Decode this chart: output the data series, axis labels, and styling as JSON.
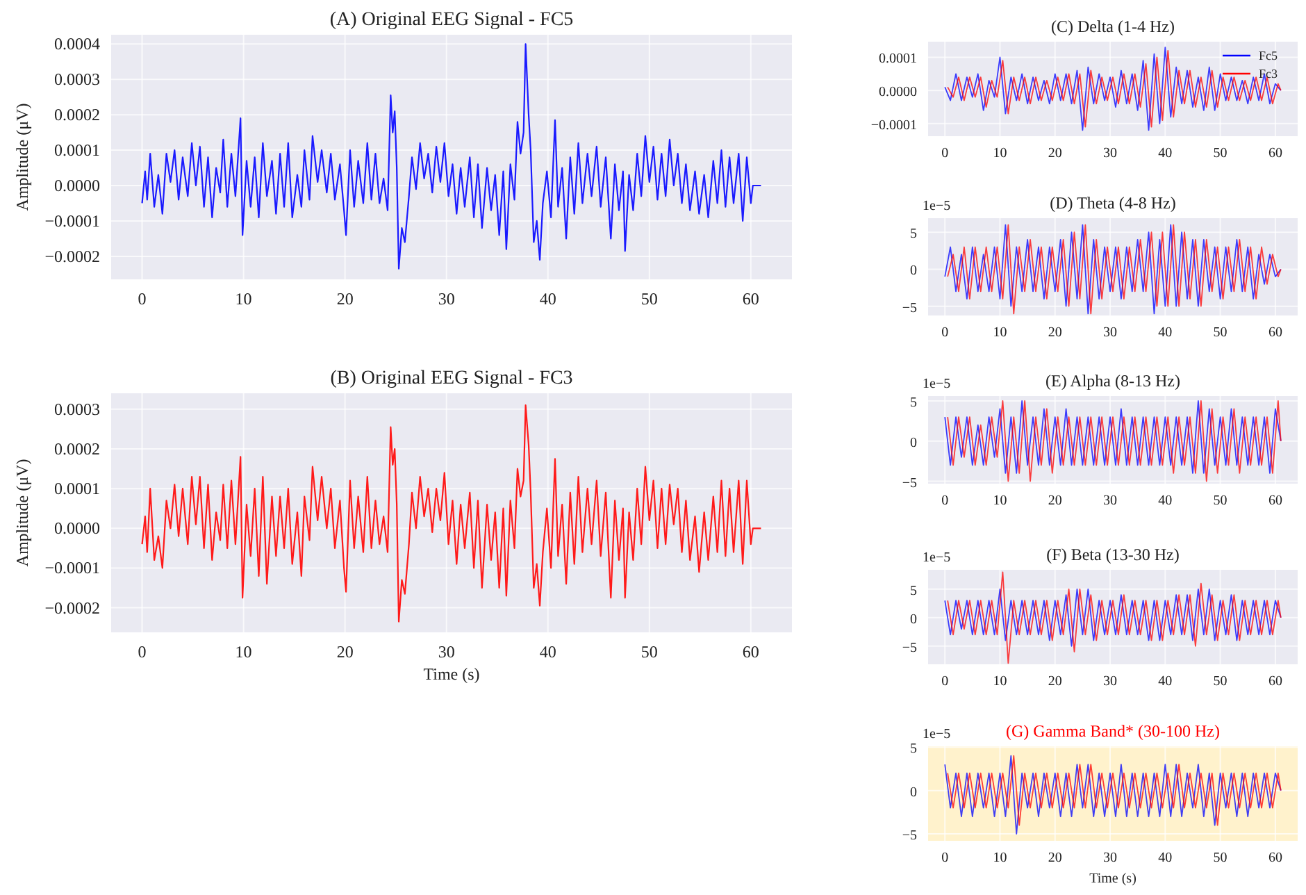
{
  "chart_data": [
    {
      "type": "line",
      "title": "(A) Original EEG Signal - FC5",
      "ylabel": "Amplitude (μV)",
      "grid": true,
      "x": [
        0,
        0.3,
        0.5,
        0.8,
        1.2,
        1.6,
        2,
        2.4,
        2.8,
        3.2,
        3.6,
        4,
        4.5,
        4.9,
        5.3,
        5.7,
        6.1,
        6.5,
        6.9,
        7.3,
        7.7,
        8,
        8.4,
        8.8,
        9.2,
        9.7,
        9.9,
        10.3,
        10.7,
        11.1,
        11.5,
        11.9,
        12.3,
        12.8,
        13.2,
        13.6,
        14,
        14.4,
        14.8,
        15.3,
        15.7,
        16,
        16.5,
        16.8,
        17.3,
        17.7,
        18.2,
        18.6,
        19,
        19.5,
        19.9,
        20.1,
        20.5,
        20.9,
        21.3,
        21.8,
        22.2,
        22.6,
        23,
        23.4,
        23.8,
        24.2,
        24.5,
        24.7,
        24.9,
        25.1,
        25.3,
        25.6,
        25.9,
        26.3,
        26.6,
        27,
        27.4,
        27.8,
        28.2,
        28.6,
        29,
        29.4,
        29.8,
        30.2,
        30.6,
        31,
        31.4,
        31.8,
        32.3,
        32.7,
        33.1,
        33.5,
        34,
        34.4,
        34.8,
        35.2,
        35.6,
        35.9,
        36.3,
        36.7,
        37,
        37.3,
        37.6,
        37.8,
        38.1,
        38.3,
        38.6,
        38.9,
        39.2,
        39.5,
        39.9,
        40.3,
        40.7,
        41,
        41.4,
        41.8,
        42.2,
        42.6,
        43,
        43.4,
        43.9,
        44.3,
        44.8,
        45.2,
        45.7,
        46.2,
        46.6,
        47,
        47.4,
        47.6,
        48,
        48.4,
        48.8,
        49.2,
        49.6,
        50,
        50.4,
        50.8,
        51.2,
        51.6,
        52,
        52.4,
        52.8,
        53.2,
        53.6,
        54,
        54.5,
        54.9,
        55.4,
        55.8,
        56.3,
        56.7,
        57.1,
        57.5,
        57.9,
        58.3,
        58.8,
        59.2,
        59.6,
        60,
        60.2,
        61
      ],
      "series": [
        {
          "color": "#1a1aff",
          "values": [
            -5e-05,
            4e-05,
            -4e-05,
            9e-05,
            -6e-05,
            3e-05,
            -8e-05,
            9e-05,
            1e-05,
            0.0001,
            -4e-05,
            8e-05,
            -3e-05,
            0.00012,
            0,
            0.00011,
            -6e-05,
            8e-05,
            -9e-05,
            5e-05,
            -2e-05,
            0.00013,
            -6e-05,
            9e-05,
            -3e-05,
            0.00019,
            -0.00014,
            7e-05,
            -6e-05,
            8e-05,
            -9e-05,
            0.00012,
            -3e-05,
            7e-05,
            -8e-05,
            9e-05,
            -6e-05,
            0.00012,
            -9e-05,
            3e-05,
            -6e-05,
            0.0001,
            -4e-05,
            0.00014,
            1e-05,
            0.0001,
            -2e-05,
            9e-05,
            -4e-05,
            6e-05,
            -7e-05,
            -0.00014,
            0.0001,
            -6e-05,
            7e-05,
            -5e-05,
            0.00012,
            -4e-05,
            9e-05,
            -5e-05,
            2e-05,
            -7e-05,
            0.000255,
            0.00015,
            0.00021,
            5e-05,
            -0.000235,
            -0.00012,
            -0.00016,
            -3e-05,
            8e-05,
            -1e-05,
            0.00012,
            2e-05,
            9e-05,
            -2e-05,
            0.00011,
            1e-05,
            0.00012,
            -3e-05,
            6e-05,
            -8e-05,
            5e-05,
            -6e-05,
            8e-05,
            -9e-05,
            6e-05,
            -0.00012,
            5e-05,
            -7e-05,
            3e-05,
            -0.00014,
            4e-05,
            -0.00018,
            6e-05,
            -4e-05,
            0.00018,
            9e-05,
            0.00015,
            0.0004,
            0.0002,
            0.0001,
            -0.00016,
            -0.0001,
            -0.00021,
            -5e-05,
            4e-05,
            -9e-05,
            0.000185,
            -6e-05,
            5e-05,
            -0.00015,
            8e-05,
            -8e-05,
            0.00012,
            -5e-05,
            9e-05,
            -3e-05,
            0.00011,
            -6e-05,
            8e-05,
            -0.00015,
            6e-05,
            -7e-05,
            4e-05,
            -0.000185,
            3e-05,
            -7e-05,
            9e-05,
            -3e-05,
            0.00014,
            1e-05,
            0.00011,
            -4e-05,
            9e-05,
            -3e-05,
            0.00013,
            0,
            9e-05,
            -5e-05,
            6e-05,
            -7e-05,
            4e-05,
            -8e-05,
            3e-05,
            -9e-05,
            7e-05,
            -5e-05,
            0.0001,
            -6e-05,
            8e-05,
            -5e-05,
            9e-05,
            -0.0001,
            8e-05,
            -5e-05,
            0,
            0
          ]
        }
      ],
      "xlim": [
        -3.05,
        64.05
      ],
      "xticks": [
        0,
        10,
        20,
        30,
        40,
        50,
        60
      ],
      "ylim": [
        -0.000265,
        0.000426
      ],
      "yticks": [
        {
          "value": -0.0002,
          "label": "−0.0002"
        },
        {
          "value": -0.0001,
          "label": "−0.0001"
        },
        {
          "value": 0,
          "label": "0.0000"
        },
        0.0001,
        0.0002,
        0.0003,
        0.0004
      ]
    },
    {
      "type": "line",
      "title": "(B) Original EEG Signal - FC3",
      "xlabel": "Time (s)",
      "ylabel": "Amplitude (μV)",
      "grid": true,
      "x": [
        0,
        0.3,
        0.5,
        0.8,
        1.2,
        1.6,
        2,
        2.4,
        2.8,
        3.2,
        3.6,
        4,
        4.5,
        4.9,
        5.3,
        5.7,
        6.1,
        6.5,
        6.9,
        7.3,
        7.7,
        8,
        8.4,
        8.8,
        9.2,
        9.7,
        9.9,
        10.3,
        10.7,
        11.1,
        11.5,
        11.9,
        12.3,
        12.8,
        13.2,
        13.6,
        14,
        14.4,
        14.8,
        15.3,
        15.7,
        16,
        16.5,
        16.8,
        17.3,
        17.7,
        18.2,
        18.6,
        19,
        19.5,
        19.9,
        20.1,
        20.5,
        20.9,
        21.3,
        21.8,
        22.2,
        22.6,
        23,
        23.4,
        23.8,
        24.2,
        24.5,
        24.7,
        24.9,
        25.1,
        25.3,
        25.6,
        25.9,
        26.3,
        26.6,
        27,
        27.4,
        27.8,
        28.2,
        28.6,
        29,
        29.4,
        29.8,
        30.2,
        30.6,
        31,
        31.4,
        31.8,
        32.3,
        32.7,
        33.1,
        33.5,
        34,
        34.4,
        34.8,
        35.2,
        35.6,
        35.9,
        36.3,
        36.7,
        37,
        37.3,
        37.6,
        37.8,
        38.1,
        38.3,
        38.6,
        38.9,
        39.2,
        39.5,
        39.9,
        40.3,
        40.7,
        41,
        41.4,
        41.8,
        42.2,
        42.6,
        43,
        43.4,
        43.9,
        44.3,
        44.8,
        45.2,
        45.7,
        46.2,
        46.6,
        47,
        47.4,
        47.6,
        48,
        48.4,
        48.8,
        49.2,
        49.6,
        50,
        50.4,
        50.8,
        51.2,
        51.6,
        52,
        52.4,
        52.8,
        53.2,
        53.6,
        54,
        54.5,
        54.9,
        55.4,
        55.8,
        56.3,
        56.7,
        57.1,
        57.5,
        57.9,
        58.3,
        58.8,
        59.2,
        59.6,
        60,
        60.2,
        61
      ],
      "series": [
        {
          "color": "#ff1a1a",
          "values": [
            -4e-05,
            3e-05,
            -6e-05,
            0.0001,
            -8e-05,
            -2e-05,
            -0.0001,
            7e-05,
            0,
            0.00011,
            -2e-05,
            0.0001,
            -4e-05,
            0.00013,
            1e-05,
            0.00013,
            -5e-05,
            0.00011,
            -8e-05,
            4e-05,
            -3e-05,
            0.00011,
            -5e-05,
            0.00012,
            -4e-05,
            0.00018,
            -0.000175,
            6e-05,
            -7e-05,
            0.0001,
            -0.00012,
            0.00013,
            -0.00014,
            8e-05,
            -7e-05,
            8e-05,
            -5e-05,
            0.0001,
            -9e-05,
            4e-05,
            -0.00012,
            8e-05,
            -3e-05,
            0.000155,
            2e-05,
            0.00013,
            0,
            0.0001,
            -5e-05,
            7e-05,
            -0.0001,
            -0.00016,
            0.00012,
            -5e-05,
            8e-05,
            -6e-05,
            0.00013,
            -5e-05,
            7e-05,
            -4e-05,
            3e-05,
            -6e-05,
            0.000255,
            0.00016,
            0.0002,
            6e-05,
            -0.000235,
            -0.00013,
            -0.000165,
            -4e-05,
            9e-05,
            0,
            0.00013,
            3e-05,
            0.0001,
            -1e-05,
            0.0001,
            2e-05,
            0.00014,
            -4e-05,
            7e-05,
            -9e-05,
            6e-05,
            -5e-05,
            9e-05,
            -0.0001,
            7e-05,
            -0.00015,
            6e-05,
            -8e-05,
            4e-05,
            -0.00015,
            5e-05,
            -0.00017,
            7e-05,
            -5e-05,
            0.00015,
            8e-05,
            0.00012,
            0.00031,
            0.00021,
            9e-05,
            -0.00015,
            -9e-05,
            -0.000195,
            -6e-05,
            5e-05,
            -0.0001,
            0.000175,
            -7e-05,
            6e-05,
            -0.00014,
            9e-05,
            -9e-05,
            0.00013,
            -6e-05,
            0.0001,
            -4e-05,
            0.00012,
            -7e-05,
            9e-05,
            -0.000175,
            7e-05,
            -8e-05,
            5e-05,
            -0.000175,
            4e-05,
            -8e-05,
            0.0001,
            -4e-05,
            0.000155,
            2e-05,
            0.00012,
            -5e-05,
            0.0001,
            -4e-05,
            0.00011,
            1e-05,
            0.0001,
            -6e-05,
            7e-05,
            -8e-05,
            3e-05,
            -0.00011,
            4e-05,
            -8e-05,
            8e-05,
            -6e-05,
            0.00012,
            -7e-05,
            0.0001,
            -6e-05,
            0.00012,
            -9e-05,
            0.00012,
            -4e-05,
            0,
            0
          ]
        }
      ],
      "xlim": [
        -3.05,
        64.05
      ],
      "xticks": [
        0,
        10,
        20,
        30,
        40,
        50,
        60
      ],
      "ylim": [
        -0.000262,
        0.00034
      ],
      "yticks": [
        {
          "value": -0.0002,
          "label": "−0.0002"
        },
        {
          "value": -0.0001,
          "label": "−0.0001"
        },
        {
          "value": 0,
          "label": "0.0000"
        },
        0.0001,
        0.0002,
        0.0003
      ]
    },
    {
      "type": "line",
      "title": "(C) Delta (1-4 Hz)",
      "grid": true,
      "legend": "top right",
      "x": [
        0,
        1,
        2,
        3,
        4,
        5,
        6,
        7,
        8,
        9,
        10,
        11,
        12,
        13,
        14,
        15,
        16,
        17,
        18,
        19,
        20,
        21,
        22,
        23,
        24,
        25,
        26,
        27,
        28,
        29,
        30,
        31,
        32,
        33,
        34,
        35,
        36,
        37,
        38,
        39,
        40,
        41,
        42,
        43,
        44,
        45,
        46,
        47,
        48,
        49,
        50,
        51,
        52,
        53,
        54,
        55,
        56,
        57,
        58,
        59,
        60,
        61
      ],
      "series": [
        {
          "name": "Fc5",
          "color": "#0000ff",
          "values": [
            1e-05,
            -3e-05,
            5e-05,
            -3e-05,
            4e-05,
            -2e-05,
            5e-05,
            -6e-05,
            3e-05,
            -2e-05,
            0.0001,
            -7e-05,
            4e-05,
            -3e-05,
            5e-05,
            -4e-05,
            4e-05,
            -3e-05,
            3e-05,
            -4e-05,
            5e-05,
            -3e-05,
            5e-05,
            -4e-05,
            6e-05,
            -0.00012,
            7e-05,
            -4e-05,
            5e-05,
            -3e-05,
            4e-05,
            -5e-05,
            6e-05,
            -4e-05,
            5e-05,
            -6e-05,
            9e-05,
            -0.00012,
            0.00011,
            -0.0001,
            0.00013,
            -8e-05,
            7e-05,
            -4e-05,
            6e-05,
            -5e-05,
            4e-05,
            -6e-05,
            7e-05,
            -6e-05,
            5e-05,
            -3e-05,
            4e-05,
            -3e-05,
            3e-05,
            -4e-05,
            4e-05,
            -3e-05,
            5e-05,
            -4e-05,
            2e-05,
            0
          ]
        },
        {
          "name": "Fc3",
          "color": "#ff0000",
          "x": [
            0.5,
            1.5,
            2.5,
            3.5,
            4.5,
            5.5,
            6.5,
            7.5,
            8.5,
            9.5,
            10.5,
            11.5,
            12.5,
            13.5,
            14.5,
            15.5,
            16.5,
            17.5,
            18.5,
            19.5,
            20.5,
            21.5,
            22.5,
            23.5,
            24.5,
            25.5,
            26.5,
            27.5,
            28.5,
            29.5,
            30.5,
            31.5,
            32.5,
            33.5,
            34.5,
            35.5,
            36.5,
            37.5,
            38.5,
            39.5,
            40.5,
            41.5,
            42.5,
            43.5,
            44.5,
            45.5,
            46.5,
            47.5,
            48.5,
            49.5,
            50.5,
            51.5,
            52.5,
            53.5,
            54.5,
            55.5,
            56.5,
            57.5,
            58.5,
            59.5,
            60.5,
            61
          ],
          "values": [
            1e-05,
            -2e-05,
            4e-05,
            -3e-05,
            4e-05,
            -2e-05,
            4e-05,
            -5e-05,
            3e-05,
            -2e-05,
            9e-05,
            -7e-05,
            4e-05,
            -3e-05,
            4e-05,
            -4e-05,
            4e-05,
            -3e-05,
            3e-05,
            -3e-05,
            4e-05,
            -3e-05,
            5e-05,
            -4e-05,
            5e-05,
            -0.00011,
            6e-05,
            -4e-05,
            4e-05,
            -3e-05,
            4e-05,
            -4e-05,
            5e-05,
            -4e-05,
            5e-05,
            -5e-05,
            8e-05,
            -0.00011,
            0.0001,
            -9e-05,
            0.00012,
            -8e-05,
            6e-05,
            -4e-05,
            6e-05,
            -5e-05,
            4e-05,
            -5e-05,
            6e-05,
            -5e-05,
            4e-05,
            -3e-05,
            4e-05,
            -3e-05,
            3e-05,
            -3e-05,
            4e-05,
            -3e-05,
            4e-05,
            -4e-05,
            2e-05,
            0
          ]
        }
      ],
      "xlim": [
        -3.05,
        64.05
      ],
      "xticks": [
        0,
        10,
        20,
        30,
        40,
        50,
        60
      ],
      "ylim": [
        -0.000138,
        0.000147
      ],
      "yticks": [
        {
          "value": -0.0001,
          "label": "−0.0001"
        },
        {
          "value": 0,
          "label": "0.0000"
        },
        0.0001
      ]
    },
    {
      "type": "line",
      "title": "(D) Theta (4-8 Hz)",
      "grid": true,
      "annotations": [
        "1e−5"
      ],
      "x": [
        0,
        1,
        2,
        3,
        4,
        5,
        6,
        7,
        8,
        9,
        10,
        11,
        12,
        13,
        14,
        15,
        16,
        17,
        18,
        19,
        20,
        21,
        22,
        23,
        24,
        25,
        26,
        27,
        28,
        29,
        30,
        31,
        32,
        33,
        34,
        35,
        36,
        37,
        38,
        39,
        40,
        41,
        42,
        43,
        44,
        45,
        46,
        47,
        48,
        49,
        50,
        51,
        52,
        53,
        54,
        55,
        56,
        57,
        58,
        59,
        60,
        61
      ],
      "series": [
        {
          "color": "#0000ff",
          "values": [
            -1,
            3,
            -3,
            2,
            -4,
            3,
            -3,
            2,
            -3,
            3,
            -4,
            6,
            -5,
            3,
            -3,
            4,
            -3,
            3,
            -4,
            3,
            -3,
            4,
            -5,
            5,
            -4,
            6,
            -6,
            4,
            -4,
            3,
            -3,
            3,
            -4,
            3,
            -3,
            4,
            -3,
            5,
            -6,
            4,
            -5,
            6,
            -5,
            5,
            -4,
            4,
            -5,
            4,
            -3,
            3,
            -4,
            3,
            -3,
            4,
            -3,
            3,
            -4,
            2,
            -2,
            2,
            -1,
            0
          ]
        },
        {
          "color": "#ff0000",
          "x": [
            0.5,
            1.5,
            2.5,
            3.5,
            4.5,
            5.5,
            6.5,
            7.5,
            8.5,
            9.5,
            10.5,
            11.5,
            12.5,
            13.5,
            14.5,
            15.5,
            16.5,
            17.5,
            18.5,
            19.5,
            20.5,
            21.5,
            22.5,
            23.5,
            24.5,
            25.5,
            26.5,
            27.5,
            28.5,
            29.5,
            30.5,
            31.5,
            32.5,
            33.5,
            34.5,
            35.5,
            36.5,
            37.5,
            38.5,
            39.5,
            40.5,
            41.5,
            42.5,
            43.5,
            44.5,
            45.5,
            46.5,
            47.5,
            48.5,
            49.5,
            50.5,
            51.5,
            52.5,
            53.5,
            54.5,
            55.5,
            56.5,
            57.5,
            58.5,
            59.5,
            60.5,
            61
          ],
          "values": [
            -1,
            2,
            -3,
            3,
            -4,
            3,
            -3,
            3,
            -3,
            3,
            -4,
            6,
            -6,
            3,
            -3,
            4,
            -3,
            3,
            -4,
            3,
            -3,
            4,
            -5,
            5,
            -4,
            6,
            -6,
            4,
            -4,
            3,
            -3,
            3,
            -4,
            3,
            -3,
            4,
            -3,
            5,
            -5,
            5,
            -5,
            6,
            -5,
            5,
            -4,
            4,
            -5,
            4,
            -3,
            3,
            -4,
            3,
            -3,
            4,
            -3,
            3,
            -4,
            3,
            -2,
            2,
            -1,
            0
          ]
        }
      ],
      "xlim": [
        -3.05,
        64.05
      ],
      "xticks": [
        0,
        10,
        20,
        30,
        40,
        50,
        60
      ],
      "ylim": [
        -6.25,
        6.9
      ],
      "yticks": [
        {
          "value": -5,
          "label": "−5"
        },
        0,
        5
      ]
    },
    {
      "type": "line",
      "title": "(E) Alpha (8-13 Hz)",
      "grid": true,
      "annotations": [
        "1e−5"
      ],
      "x": [
        0,
        1,
        2,
        3,
        4,
        5,
        6,
        7,
        8,
        9,
        10,
        11,
        12,
        13,
        14,
        15,
        16,
        17,
        18,
        19,
        20,
        21,
        22,
        23,
        24,
        25,
        26,
        27,
        28,
        29,
        30,
        31,
        32,
        33,
        34,
        35,
        36,
        37,
        38,
        39,
        40,
        41,
        42,
        43,
        44,
        45,
        46,
        47,
        48,
        49,
        50,
        51,
        52,
        53,
        54,
        55,
        56,
        57,
        58,
        59,
        60,
        61
      ],
      "series": [
        {
          "color": "#0000ff",
          "values": [
            3,
            -3,
            3,
            -2,
            3,
            -3,
            2,
            -3,
            3,
            -2,
            4,
            -4,
            3,
            -4,
            5,
            -3,
            3,
            -3,
            4,
            -3,
            3,
            -3,
            4,
            -3,
            3,
            -3,
            3,
            -3,
            3,
            -3,
            3,
            -3,
            4,
            -3,
            3,
            -3,
            3,
            -3,
            3,
            -3,
            3,
            -3,
            3,
            -3,
            3,
            -4,
            5,
            -4,
            4,
            -3,
            3,
            -3,
            4,
            -3,
            3,
            -3,
            3,
            -3,
            3,
            -4,
            4,
            0
          ]
        },
        {
          "color": "#ff0000",
          "x": [
            0.5,
            1.5,
            2.5,
            3.5,
            4.5,
            5.5,
            6.5,
            7.5,
            8.5,
            9.5,
            10.5,
            11.5,
            12.5,
            13.5,
            14.5,
            15.5,
            16.5,
            17.5,
            18.5,
            19.5,
            20.5,
            21.5,
            22.5,
            23.5,
            24.5,
            25.5,
            26.5,
            27.5,
            28.5,
            29.5,
            30.5,
            31.5,
            32.5,
            33.5,
            34.5,
            35.5,
            36.5,
            37.5,
            38.5,
            39.5,
            40.5,
            41.5,
            42.5,
            43.5,
            44.5,
            45.5,
            46.5,
            47.5,
            48.5,
            49.5,
            50.5,
            51.5,
            52.5,
            53.5,
            54.5,
            55.5,
            56.5,
            57.5,
            58.5,
            59.5,
            60.5,
            61
          ],
          "values": [
            3,
            -3,
            3,
            -2,
            3,
            -3,
            2,
            -3,
            3,
            -2,
            5,
            -5,
            3,
            -4,
            5,
            -5,
            3,
            -3,
            4,
            -4,
            3,
            -3,
            3,
            -3,
            3,
            -3,
            3,
            -3,
            3,
            -3,
            3,
            -3,
            3,
            -3,
            3,
            -3,
            3,
            -3,
            3,
            -3,
            3,
            -4,
            3,
            -3,
            3,
            -4,
            5,
            -5,
            4,
            -4,
            3,
            -3,
            4,
            -4,
            3,
            -3,
            3,
            -3,
            3,
            -4,
            5,
            0
          ]
        }
      ],
      "xlim": [
        -3.05,
        64.05
      ],
      "xticks": [
        0,
        10,
        20,
        30,
        40,
        50,
        60
      ],
      "ylim": [
        -5.3,
        5.6
      ],
      "yticks": [
        {
          "value": -5,
          "label": "−5"
        },
        0,
        5
      ]
    },
    {
      "type": "line",
      "title": "(F) Beta (13-30 Hz)",
      "grid": true,
      "annotations": [
        "1e−5"
      ],
      "x": [
        0,
        1,
        2,
        3,
        4,
        5,
        6,
        7,
        8,
        9,
        10,
        11,
        12,
        13,
        14,
        15,
        16,
        17,
        18,
        19,
        20,
        21,
        22,
        23,
        24,
        25,
        26,
        27,
        28,
        29,
        30,
        31,
        32,
        33,
        34,
        35,
        36,
        37,
        38,
        39,
        40,
        41,
        42,
        43,
        44,
        45,
        46,
        47,
        48,
        49,
        50,
        51,
        52,
        53,
        54,
        55,
        56,
        57,
        58,
        59,
        60,
        61
      ],
      "series": [
        {
          "color": "#0000ff",
          "values": [
            3,
            -3,
            3,
            -2,
            3,
            -3,
            3,
            -3,
            3,
            -3,
            5,
            -4,
            3,
            -3,
            3,
            -3,
            3,
            -3,
            3,
            -4,
            3,
            -3,
            4,
            -5,
            5,
            -3,
            5,
            -4,
            3,
            -3,
            3,
            -3,
            4,
            -3,
            3,
            -3,
            3,
            -4,
            3,
            -4,
            3,
            -3,
            4,
            -3,
            4,
            -4,
            5,
            -3,
            5,
            -4,
            3,
            -3,
            4,
            -4,
            3,
            -3,
            3,
            -3,
            3,
            -3,
            3,
            0
          ]
        },
        {
          "color": "#ff0000",
          "x": [
            0.5,
            1.5,
            2.5,
            3.5,
            4.5,
            5.5,
            6.5,
            7.5,
            8.5,
            9.5,
            10.5,
            11.5,
            12.5,
            13.5,
            14.5,
            15.5,
            16.5,
            17.5,
            18.5,
            19.5,
            20.5,
            21.5,
            22.5,
            23.5,
            24.5,
            25.5,
            26.5,
            27.5,
            28.5,
            29.5,
            30.5,
            31.5,
            32.5,
            33.5,
            34.5,
            35.5,
            36.5,
            37.5,
            38.5,
            39.5,
            40.5,
            41.5,
            42.5,
            43.5,
            44.5,
            45.5,
            46.5,
            47.5,
            48.5,
            49.5,
            50.5,
            51.5,
            52.5,
            53.5,
            54.5,
            55.5,
            56.5,
            57.5,
            58.5,
            59.5,
            60.5,
            61
          ],
          "values": [
            3,
            -3,
            3,
            -2,
            3,
            -3,
            3,
            -3,
            3,
            -3,
            8,
            -8,
            3,
            -3,
            3,
            -3,
            3,
            -3,
            3,
            -4,
            3,
            -3,
            5,
            -6,
            5,
            -3,
            4,
            -4,
            3,
            -3,
            3,
            -3,
            4,
            -3,
            3,
            -3,
            3,
            -4,
            3,
            -4,
            3,
            -3,
            4,
            -3,
            4,
            -5,
            6,
            -3,
            4,
            -4,
            3,
            -3,
            4,
            -4,
            3,
            -3,
            3,
            -3,
            3,
            -3,
            3,
            0
          ]
        }
      ],
      "xlim": [
        -3.05,
        64.05
      ],
      "xticks": [
        0,
        10,
        20,
        30,
        40,
        50,
        60
      ],
      "ylim": [
        -8.2,
        8.4
      ],
      "yticks": [
        {
          "value": -5,
          "label": "−5"
        },
        0,
        5
      ]
    },
    {
      "type": "line",
      "title": "(G) Gamma Band* (30-100 Hz)",
      "xlabel": "Time (s)",
      "grid": true,
      "annotations": [
        "1e−5"
      ],
      "bands": [
        {
          "axis": "x",
          "from": -3.05,
          "to": 64.05,
          "color": "#fff2cc"
        }
      ],
      "x": [
        0,
        1,
        2,
        3,
        4,
        5,
        6,
        7,
        8,
        9,
        10,
        11,
        12,
        13,
        14,
        15,
        16,
        17,
        18,
        19,
        20,
        21,
        22,
        23,
        24,
        25,
        26,
        27,
        28,
        29,
        30,
        31,
        32,
        33,
        34,
        35,
        36,
        37,
        38,
        39,
        40,
        41,
        42,
        43,
        44,
        45,
        46,
        47,
        48,
        49,
        50,
        51,
        52,
        53,
        54,
        55,
        56,
        57,
        58,
        59,
        60,
        61
      ],
      "series": [
        {
          "color": "#0000ff",
          "values": [
            3,
            -2,
            2,
            -3,
            2,
            -3,
            2,
            -2,
            2,
            -3,
            2,
            -3,
            4,
            -5,
            2,
            -2,
            2,
            -3,
            2,
            -2,
            2,
            -3,
            2,
            -3,
            3,
            -2,
            3,
            -3,
            2,
            -3,
            2,
            -3,
            3,
            -3,
            2,
            -3,
            2,
            -3,
            2,
            -3,
            3,
            -3,
            3,
            -3,
            2,
            -2,
            3,
            -3,
            2,
            -4,
            2,
            -2,
            2,
            -3,
            2,
            -3,
            2,
            -2,
            2,
            -2,
            2,
            0
          ]
        },
        {
          "color": "#ff0000",
          "x": [
            0.5,
            1.5,
            2.5,
            3.5,
            4.5,
            5.5,
            6.5,
            7.5,
            8.5,
            9.5,
            10.5,
            11.5,
            12.5,
            13.5,
            14.5,
            15.5,
            16.5,
            17.5,
            18.5,
            19.5,
            20.5,
            21.5,
            22.5,
            23.5,
            24.5,
            25.5,
            26.5,
            27.5,
            28.5,
            29.5,
            30.5,
            31.5,
            32.5,
            33.5,
            34.5,
            35.5,
            36.5,
            37.5,
            38.5,
            39.5,
            40.5,
            41.5,
            42.5,
            43.5,
            44.5,
            45.5,
            46.5,
            47.5,
            48.5,
            49.5,
            50.5,
            51.5,
            52.5,
            53.5,
            54.5,
            55.5,
            56.5,
            57.5,
            58.5,
            59.5,
            60.5,
            61
          ],
          "values": [
            2,
            -2,
            2,
            -2,
            2,
            -2,
            2,
            -2,
            2,
            -2,
            2,
            -2,
            4,
            -4,
            2,
            -2,
            2,
            -2,
            2,
            -2,
            2,
            -2,
            2,
            -2,
            3,
            -2,
            3,
            -2,
            2,
            -2,
            2,
            -2,
            2,
            -2,
            2,
            -2,
            2,
            -2,
            2,
            -2,
            2,
            -2,
            3,
            -2,
            2,
            -2,
            2,
            -2,
            2,
            -4,
            2,
            -2,
            2,
            -2,
            2,
            -2,
            2,
            -2,
            2,
            -2,
            2,
            0
          ]
        }
      ],
      "xlim": [
        -3.05,
        64.05
      ],
      "xticks": [
        0,
        10,
        20,
        30,
        40,
        50,
        60
      ],
      "ylim": [
        -5.8,
        5.1
      ],
      "yticks": [
        {
          "value": -5,
          "label": "−5"
        },
        0,
        5
      ]
    }
  ]
}
